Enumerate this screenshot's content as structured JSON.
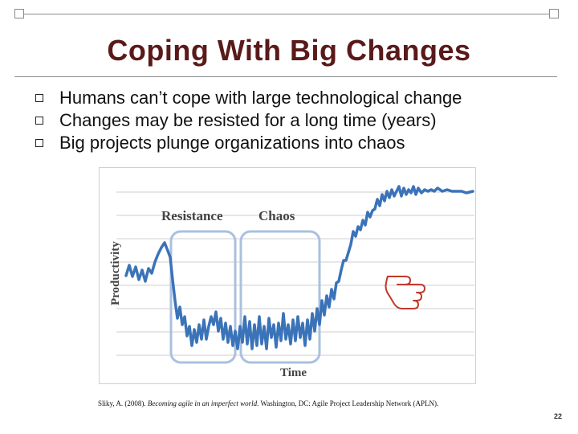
{
  "slide": {
    "title": "Coping With Big Changes",
    "bullets": [
      "Humans can’t cope with large technological change",
      "Changes may be resisted for a long time (years)",
      "Big projects plunge organizations into chaos"
    ],
    "citation": {
      "prefix": "Sliky, A. (2008). ",
      "italic": "Becoming agile in an imperfect world",
      "suffix": ". Washington, DC: Agile Project Leadership Network (APLN)."
    },
    "page_number": "22",
    "colors": {
      "title": "#5a1a1a",
      "line": "#3b73b9",
      "phase_box": "#a9c1df",
      "pointer": "#c0392b"
    }
  },
  "figure": {
    "y_axis_label": "Productivity",
    "x_axis_label": "Time",
    "phase_labels": [
      "Resistance",
      "Chaos"
    ],
    "pointer_icon": "pointing-hand-icon"
  }
}
